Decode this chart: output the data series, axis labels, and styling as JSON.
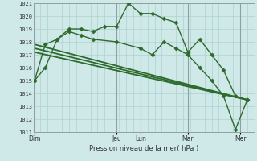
{
  "title": "",
  "xlabel": "Pression niveau de la mer( hPa )",
  "ylabel": "",
  "bg_color": "#cfe8e8",
  "grid_color": "#b0d0cc",
  "line_color": "#2d6a2d",
  "ylim": [
    1011,
    1021
  ],
  "xlim": [
    0,
    9.3
  ],
  "yticks": [
    1011,
    1012,
    1013,
    1014,
    1015,
    1016,
    1017,
    1018,
    1019,
    1020,
    1021
  ],
  "day_labels": [
    "Dim",
    "Jeu",
    "Lun",
    "Mar",
    "Mer"
  ],
  "day_positions": [
    0.05,
    3.5,
    4.5,
    6.5,
    8.7
  ],
  "vline_positions": [
    0.05,
    3.5,
    4.5,
    6.5,
    8.7
  ],
  "series": [
    {
      "x": [
        0.05,
        0.5,
        1.0,
        1.5,
        2.0,
        2.5,
        3.0,
        3.5,
        4.0,
        4.5,
        5.0,
        5.5,
        6.0,
        6.5,
        7.0,
        7.5,
        8.0,
        8.5,
        9.0
      ],
      "y": [
        1015.0,
        1016.0,
        1018.2,
        1019.0,
        1019.0,
        1018.8,
        1019.2,
        1019.2,
        1021.0,
        1020.2,
        1020.2,
        1019.8,
        1019.5,
        1017.2,
        1018.2,
        1017.0,
        1015.8,
        1013.8,
        1013.5
      ],
      "marker": "D",
      "linewidth": 1.0,
      "markersize": 2.5,
      "zorder": 3
    },
    {
      "x": [
        0.05,
        0.5,
        1.0,
        1.5,
        2.0,
        2.5,
        3.5,
        4.5,
        5.0,
        5.5,
        6.0,
        6.5,
        7.0,
        7.5,
        8.0,
        8.5,
        9.0
      ],
      "y": [
        1015.0,
        1017.8,
        1018.2,
        1018.8,
        1018.5,
        1018.2,
        1018.0,
        1017.5,
        1017.0,
        1018.0,
        1017.5,
        1017.0,
        1016.0,
        1015.0,
        1013.8,
        1011.2,
        1013.5
      ],
      "marker": "D",
      "linewidth": 1.0,
      "markersize": 2.5,
      "zorder": 3
    },
    {
      "x": [
        0.05,
        9.0
      ],
      "y": [
        1017.8,
        1013.5
      ],
      "marker": "",
      "linewidth": 1.3,
      "markersize": 0,
      "zorder": 2
    },
    {
      "x": [
        0.05,
        9.0
      ],
      "y": [
        1017.5,
        1013.5
      ],
      "marker": "",
      "linewidth": 1.3,
      "markersize": 0,
      "zorder": 2
    },
    {
      "x": [
        0.05,
        9.0
      ],
      "y": [
        1017.2,
        1013.5
      ],
      "marker": "",
      "linewidth": 1.3,
      "markersize": 0,
      "zorder": 2
    }
  ]
}
